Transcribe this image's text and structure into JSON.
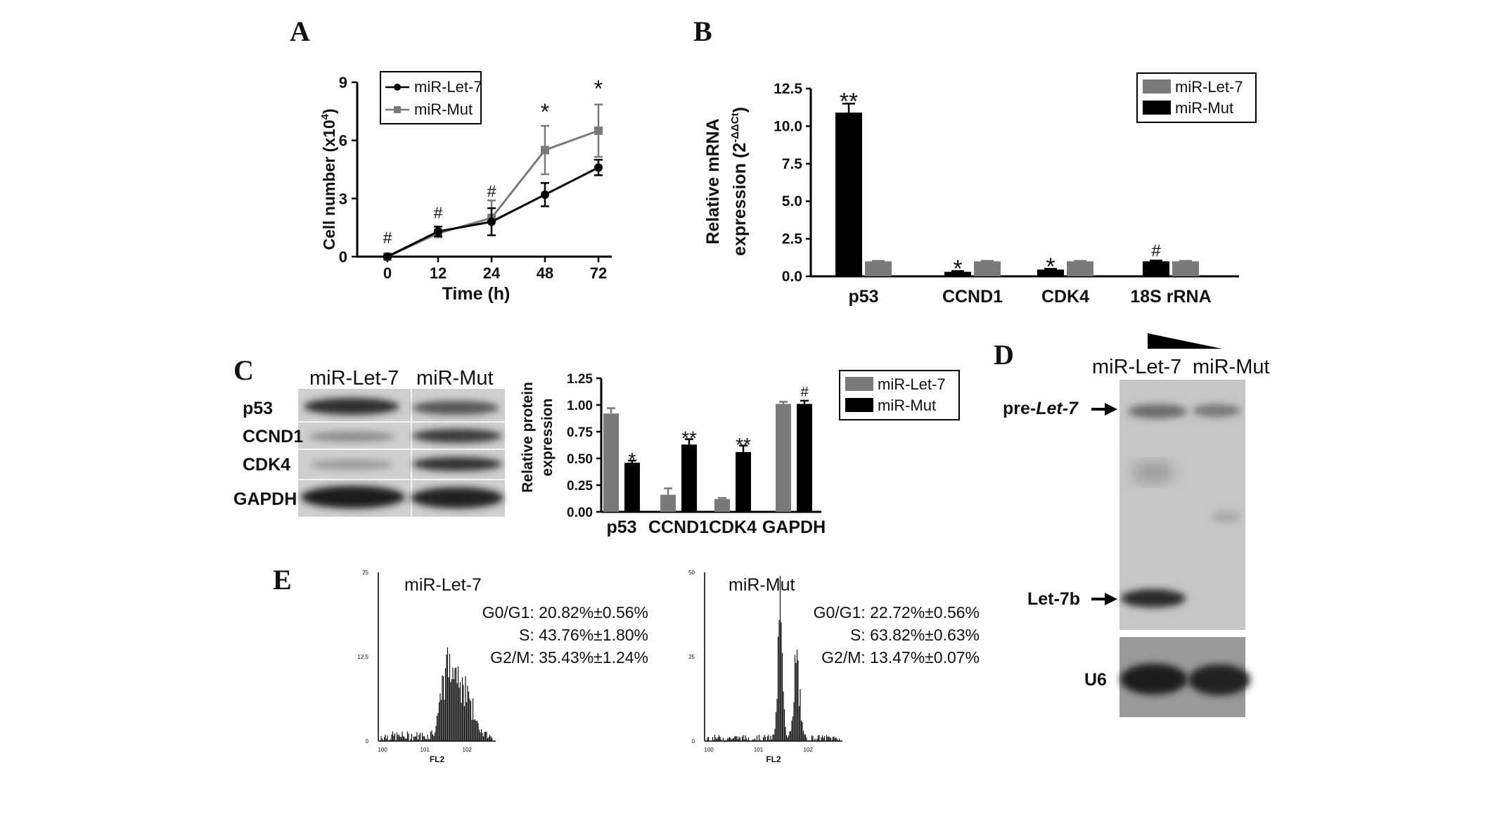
{
  "colors": {
    "let7_gray": "#7a7a7a",
    "mut_black": "#000000",
    "band_dark": "#262626",
    "gel_bg": "#c4c4c4"
  },
  "panels": {
    "A": "A",
    "B": "B",
    "C": "C",
    "D": "D",
    "E": "E"
  },
  "chart_data": [
    {
      "panel": "A",
      "type": "line",
      "x": [
        0,
        12,
        24,
        48,
        72
      ],
      "xlabel": "Time (h)",
      "ylabel": "Cell number (x10",
      "ylabel_sup": "4",
      "ylabel_end": ")",
      "ylim": [
        0,
        9
      ],
      "yticks": [
        0,
        3,
        6,
        9
      ],
      "series": [
        {
          "name": "miR-Let-7",
          "color": "#000000",
          "marker": "circle",
          "values": [
            0,
            1.3,
            1.8,
            3.2,
            4.6
          ],
          "errors": [
            0.05,
            0.25,
            0.7,
            0.6,
            0.4
          ]
        },
        {
          "name": "miR-Mut",
          "color": "#7a7a7a",
          "marker": "square",
          "values": [
            0,
            1.2,
            2.0,
            5.5,
            6.5
          ],
          "errors": [
            0.05,
            0.2,
            0.9,
            1.25,
            1.35
          ]
        }
      ],
      "annotations": [
        {
          "x": 0,
          "text": "#",
          "y": 0.9
        },
        {
          "x": 12,
          "text": "#",
          "y": 2.2
        },
        {
          "x": 24,
          "text": "#",
          "y": 3.3
        },
        {
          "x": 48,
          "text": "*",
          "y": 7.3
        },
        {
          "x": 72,
          "text": "*",
          "y": 8.5
        }
      ],
      "legend": "top-left"
    },
    {
      "panel": "B",
      "type": "bar",
      "categories": [
        "p53",
        "CCND1",
        "CDK4",
        "18S rRNA"
      ],
      "ylabel_line1": "Relative mRNA",
      "ylabel_line2": "expression (2",
      "ylabel_sup": "-ΔΔCt",
      "ylabel_end": ")",
      "ylim": [
        0,
        12.5
      ],
      "yticks": [
        "0.0",
        "2.5",
        "5.0",
        "7.5",
        "10.0",
        "12.5"
      ],
      "series": [
        {
          "name": "miR-Mut",
          "color": "#000000",
          "values": [
            10.9,
            0.3,
            0.45,
            1.0
          ],
          "errors": [
            0.6,
            0.05,
            0.05,
            0.05
          ]
        },
        {
          "name": "miR-Let-7",
          "color": "#7a7a7a",
          "values": [
            1.0,
            1.0,
            1.0,
            1.0
          ],
          "errors": [
            0.03,
            0.03,
            0.03,
            0.03
          ]
        }
      ],
      "annotations": [
        "**",
        "*",
        "*",
        "#"
      ],
      "legend": "top-right"
    },
    {
      "panel": "C",
      "type": "bar",
      "categories": [
        "p53",
        "CCND1",
        "CDK4",
        "GAPDH"
      ],
      "ylabel_line1": "Relative protein",
      "ylabel_line2": "expression",
      "ylim": [
        0,
        1.25
      ],
      "yticks": [
        "0.00",
        "0.25",
        "0.50",
        "0.75",
        "1.00",
        "1.25"
      ],
      "series": [
        {
          "name": "miR-Let-7",
          "color": "#7a7a7a",
          "values": [
            0.92,
            0.16,
            0.12,
            1.01
          ],
          "errors": [
            0.05,
            0.06,
            0.01,
            0.02
          ]
        },
        {
          "name": "miR-Mut",
          "color": "#000000",
          "values": [
            0.46,
            0.63,
            0.56,
            1.01
          ],
          "errors": [
            0.02,
            0.05,
            0.06,
            0.03
          ]
        }
      ],
      "annotations": [
        "*",
        "**",
        "**",
        "#"
      ],
      "legend": "top-right"
    },
    {
      "panel": "E",
      "type": "histogram",
      "plots": [
        {
          "title": "miR-Let-7",
          "xlabel": "FL2",
          "yticks": [
            "0",
            "12.5",
            "25"
          ],
          "xticks": [
            "100",
            "101",
            "102"
          ],
          "stats": [
            "G0/G1: 20.82%±0.56%",
            "S: 43.76%±1.80%",
            "G2/M: 35.43%±1.24%"
          ]
        },
        {
          "title": "miR-Mut",
          "xlabel": "FL2",
          "yticks": [
            "0",
            "25",
            "50"
          ],
          "xticks": [
            "100",
            "101",
            "102"
          ],
          "stats": [
            "G0/G1: 22.72%±0.56%",
            "S: 63.82%±0.63%",
            "G2/M: 13.47%±0.07%"
          ]
        }
      ]
    }
  ],
  "western_blot": {
    "lanes": [
      "miR-Let-7",
      "miR-Mut"
    ],
    "rows": [
      "p53",
      "CCND1",
      "CDK4",
      "GAPDH"
    ]
  },
  "northern_blot": {
    "lanes": [
      "miR-Let-7",
      "miR-Mut"
    ],
    "labels": {
      "pre_prefix": "pre-",
      "pre_italic": "Let-7",
      "mature": "Let-7b",
      "control": "U6"
    }
  }
}
